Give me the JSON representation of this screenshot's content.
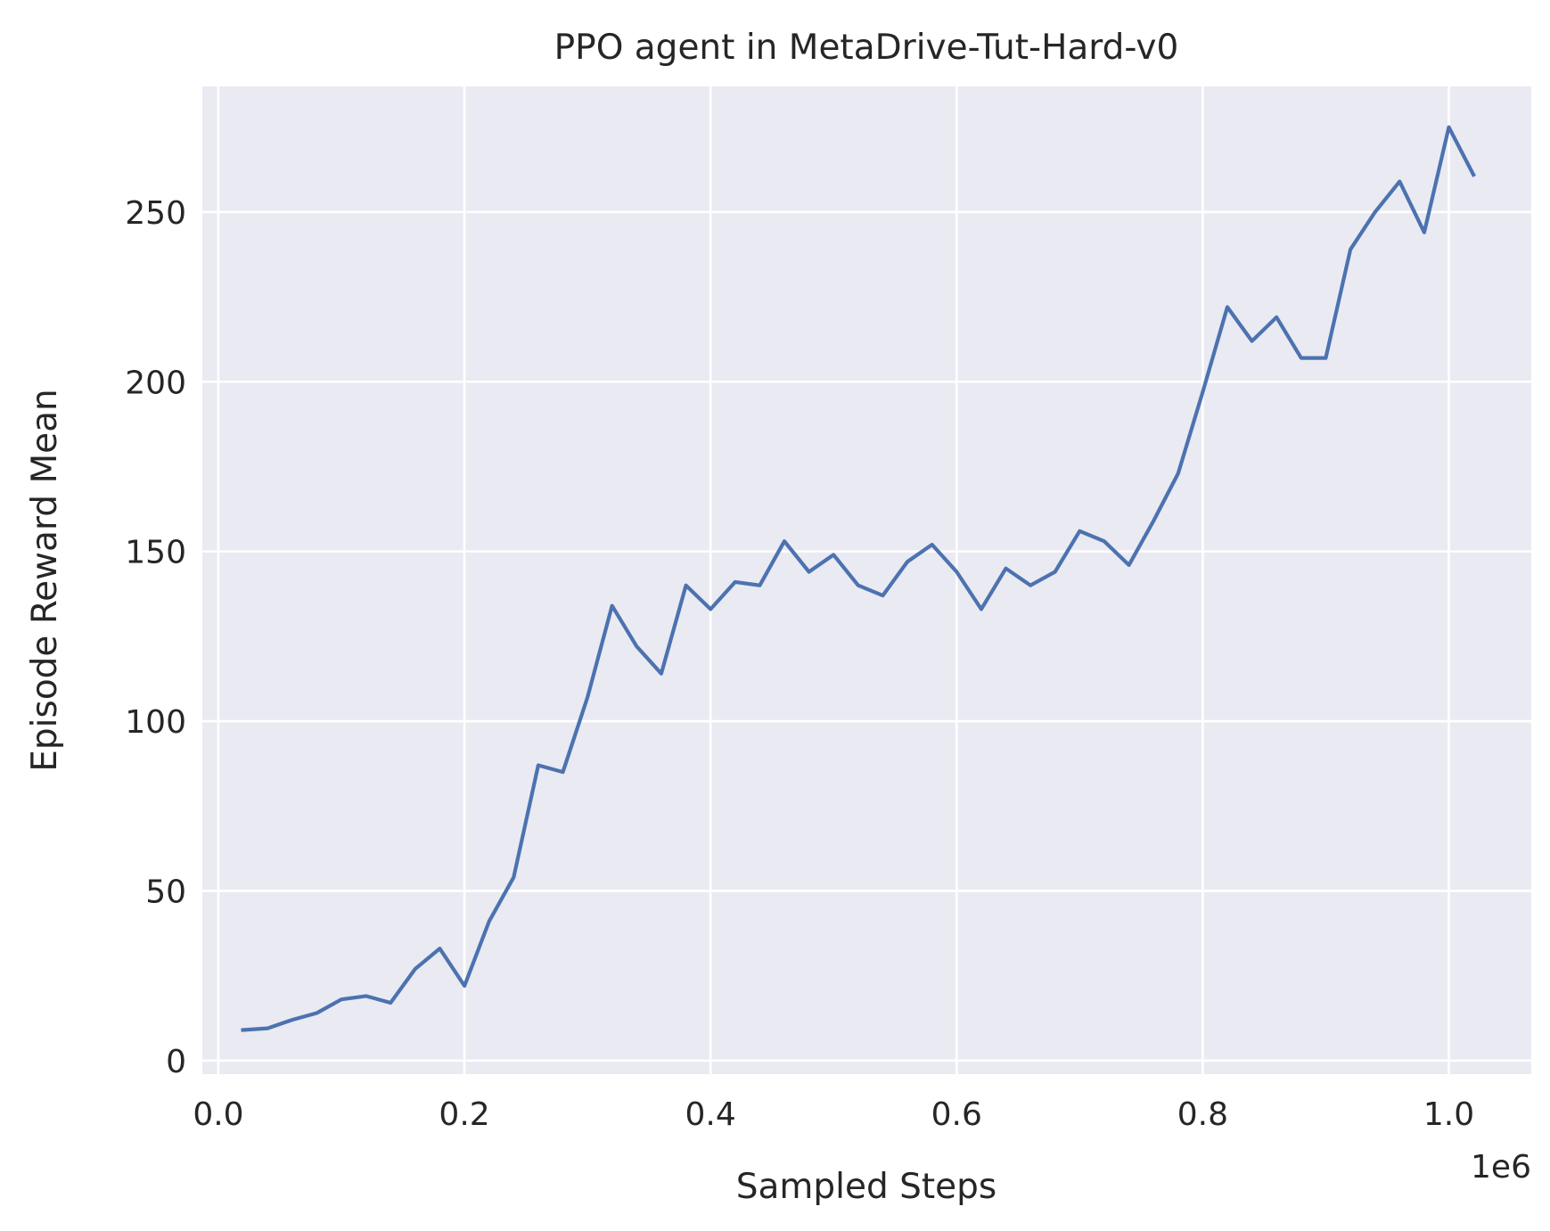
{
  "chart_data": {
    "type": "line",
    "title": "PPO agent in MetaDrive-Tut-Hard-v0",
    "xlabel": "Sampled Steps",
    "ylabel": "Episode Reward Mean",
    "x_offset_label": "1e6",
    "xlim": [
      -0.013,
      1.067
    ],
    "ylim": [
      -4,
      287
    ],
    "x_ticks": [
      0.0,
      0.2,
      0.4,
      0.6,
      0.8,
      1.0
    ],
    "x_tick_labels": [
      "0.0",
      "0.2",
      "0.4",
      "0.6",
      "0.8",
      "1.0"
    ],
    "y_ticks": [
      0,
      50,
      100,
      150,
      200,
      250
    ],
    "y_tick_labels": [
      "0",
      "50",
      "100",
      "150",
      "200",
      "250"
    ],
    "grid": true,
    "background": "#eaeaf2",
    "grid_color": "#ffffff",
    "series": [
      {
        "color": "#4c72b0",
        "x": [
          0.02,
          0.04,
          0.06,
          0.08,
          0.1,
          0.12,
          0.14,
          0.16,
          0.18,
          0.2,
          0.22,
          0.24,
          0.26,
          0.28,
          0.3,
          0.32,
          0.34,
          0.36,
          0.38,
          0.4,
          0.42,
          0.44,
          0.46,
          0.48,
          0.5,
          0.52,
          0.54,
          0.56,
          0.58,
          0.6,
          0.62,
          0.64,
          0.66,
          0.68,
          0.7,
          0.72,
          0.74,
          0.76,
          0.78,
          0.8,
          0.82,
          0.84,
          0.86,
          0.88,
          0.9,
          0.92,
          0.94,
          0.96,
          0.98,
          1.0,
          1.02
        ],
        "y": [
          9,
          9.5,
          12,
          14,
          18,
          19,
          17,
          27,
          33,
          22,
          41,
          54,
          87,
          85,
          107,
          134,
          122,
          114,
          140,
          133,
          141,
          140,
          153,
          144,
          149,
          140,
          137,
          147,
          152,
          144,
          133,
          145,
          140,
          144,
          156,
          153,
          146,
          159,
          173,
          197,
          222,
          212,
          219,
          207,
          207,
          239,
          250,
          259,
          244,
          275,
          261
        ]
      }
    ]
  }
}
